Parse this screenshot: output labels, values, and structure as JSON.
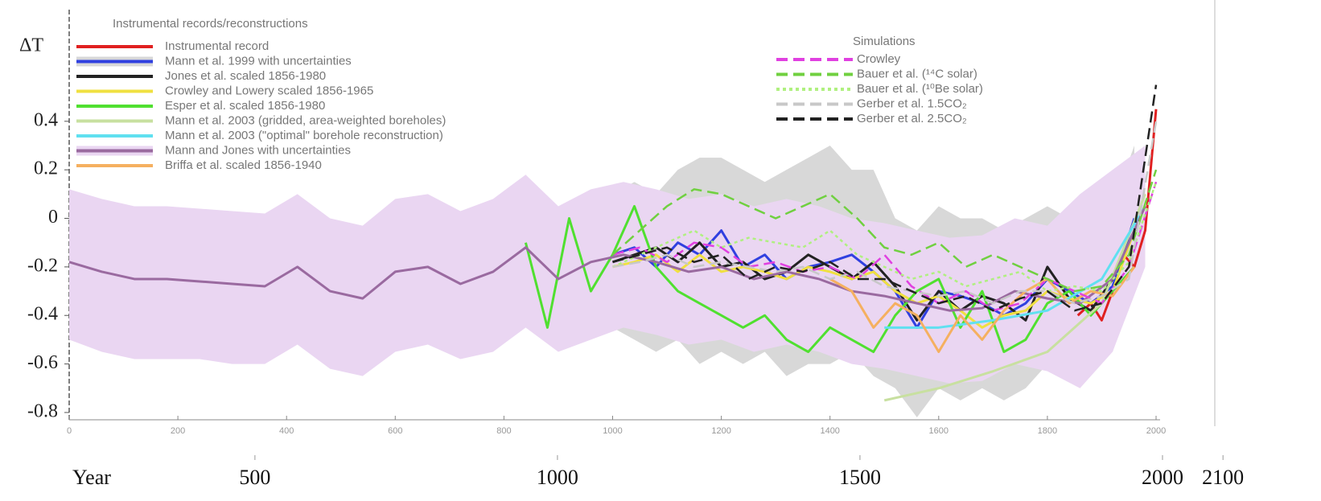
{
  "chart_data": {
    "type": "line",
    "legend_title": "Instrumental records/reconstructions",
    "simulations_title": "Simulations",
    "ylabel": "ΔT",
    "xlabel": "Year",
    "xlim": [
      0,
      2000
    ],
    "xticks": [
      0,
      200,
      400,
      600,
      800,
      1000,
      1200,
      1400,
      1600,
      1800,
      2000
    ],
    "x2lim": [
      193,
      2133
    ],
    "x2ticks": [
      500,
      1000,
      1500,
      2000,
      2100
    ],
    "ylim": [
      -0.83,
      0.86
    ],
    "yticks": [
      0.4,
      0.2,
      0,
      -0.2,
      -0.4,
      -0.6,
      -0.8
    ],
    "series": [
      {
        "name": "Instrumental record",
        "color": "#e02020",
        "x": [
          1856,
          1880,
          1900,
          1920,
          1940,
          1960,
          1980,
          2000
        ],
        "values": [
          -0.4,
          -0.35,
          -0.42,
          -0.3,
          -0.15,
          -0.2,
          -0.05,
          0.45
        ]
      },
      {
        "name": "Mann et al. 1999 with uncertainties",
        "color": "#3040e0",
        "band_color": "#d8d8d8",
        "x": [
          1000,
          1040,
          1080,
          1120,
          1160,
          1200,
          1240,
          1280,
          1320,
          1360,
          1400,
          1440,
          1480,
          1520,
          1560,
          1600,
          1640,
          1680,
          1720,
          1760,
          1800,
          1840,
          1880,
          1920,
          1960
        ],
        "values": [
          -0.15,
          -0.12,
          -0.2,
          -0.1,
          -0.15,
          -0.05,
          -0.2,
          -0.15,
          -0.25,
          -0.2,
          -0.18,
          -0.15,
          -0.22,
          -0.3,
          -0.45,
          -0.3,
          -0.32,
          -0.35,
          -0.4,
          -0.35,
          -0.25,
          -0.3,
          -0.35,
          -0.28,
          0.0
        ],
        "upper": [
          0.1,
          0.15,
          0.1,
          0.2,
          0.25,
          0.25,
          0.2,
          0.15,
          0.2,
          0.25,
          0.3,
          0.2,
          0.2,
          0.0,
          -0.05,
          0.05,
          0.0,
          0.0,
          -0.05,
          0.0,
          0.05,
          0.0,
          0.0,
          0.05,
          0.3
        ],
        "lower": [
          -0.45,
          -0.5,
          -0.55,
          -0.5,
          -0.6,
          -0.55,
          -0.6,
          -0.55,
          -0.65,
          -0.6,
          -0.6,
          -0.55,
          -0.65,
          -0.7,
          -0.82,
          -0.7,
          -0.75,
          -0.7,
          -0.75,
          -0.7,
          -0.6,
          -0.65,
          -0.6,
          -0.55,
          -0.3
        ]
      },
      {
        "name": "Jones et al. scaled 1856-1980",
        "color": "#222222",
        "x": [
          1000,
          1040,
          1080,
          1120,
          1160,
          1200,
          1240,
          1280,
          1320,
          1360,
          1400,
          1440,
          1480,
          1520,
          1560,
          1600,
          1640,
          1680,
          1720,
          1760,
          1800,
          1840,
          1880,
          1920,
          1960
        ],
        "values": [
          -0.18,
          -0.15,
          -0.12,
          -0.18,
          -0.1,
          -0.2,
          -0.18,
          -0.25,
          -0.22,
          -0.15,
          -0.2,
          -0.25,
          -0.18,
          -0.28,
          -0.42,
          -0.3,
          -0.38,
          -0.32,
          -0.35,
          -0.42,
          -0.2,
          -0.33,
          -0.38,
          -0.25,
          -0.05
        ]
      },
      {
        "name": "Crowley and Lowery scaled 1856-1965",
        "color": "#f0e040",
        "x": [
          1000,
          1040,
          1080,
          1120,
          1160,
          1200,
          1240,
          1280,
          1320,
          1360,
          1400,
          1440,
          1480,
          1520,
          1560,
          1600,
          1640,
          1680,
          1720,
          1760,
          1800,
          1840,
          1880,
          1920,
          1960
        ],
        "values": [
          -0.2,
          -0.18,
          -0.15,
          -0.22,
          -0.15,
          -0.22,
          -0.2,
          -0.22,
          -0.25,
          -0.2,
          -0.22,
          -0.25,
          -0.22,
          -0.3,
          -0.35,
          -0.32,
          -0.38,
          -0.45,
          -0.4,
          -0.38,
          -0.3,
          -0.33,
          -0.35,
          -0.3,
          -0.05
        ]
      },
      {
        "name": "Esper et al. scaled 1856-1980",
        "color": "#50e030",
        "x": [
          840,
          880,
          920,
          960,
          1000,
          1040,
          1080,
          1120,
          1160,
          1200,
          1240,
          1280,
          1320,
          1360,
          1400,
          1440,
          1480,
          1520,
          1560,
          1600,
          1640,
          1680,
          1720,
          1760,
          1800,
          1840,
          1880,
          1920,
          1960
        ],
        "values": [
          -0.1,
          -0.45,
          0.0,
          -0.3,
          -0.15,
          0.05,
          -0.2,
          -0.3,
          -0.35,
          -0.4,
          -0.45,
          -0.4,
          -0.5,
          -0.55,
          -0.45,
          -0.5,
          -0.55,
          -0.4,
          -0.3,
          -0.25,
          -0.45,
          -0.3,
          -0.55,
          -0.5,
          -0.35,
          -0.3,
          -0.4,
          -0.3,
          -0.2
        ]
      },
      {
        "name": "Mann et al. 2003 (gridded, area-weighted boreholes)",
        "color": "#c8e0a0",
        "x": [
          1500,
          1600,
          1700,
          1800,
          1900,
          1980
        ],
        "values": [
          -0.75,
          -0.7,
          -0.63,
          -0.55,
          -0.35,
          0.1
        ]
      },
      {
        "name": "Mann et al. 2003 (\"optimal\" borehole reconstruction)",
        "color": "#60e0f0",
        "x": [
          1500,
          1600,
          1700,
          1800,
          1900,
          1980
        ],
        "values": [
          -0.45,
          -0.45,
          -0.42,
          -0.38,
          -0.25,
          0.05
        ]
      },
      {
        "name": "Mann and Jones with uncertainties",
        "color": "#9a6aa0",
        "band_color": "#ead6f2",
        "x": [
          0,
          60,
          120,
          180,
          240,
          300,
          360,
          420,
          480,
          540,
          600,
          660,
          720,
          780,
          840,
          900,
          960,
          1020,
          1080,
          1140,
          1200,
          1260,
          1320,
          1380,
          1440,
          1500,
          1560,
          1620,
          1680,
          1740,
          1800,
          1860,
          1920,
          1980
        ],
        "values": [
          -0.18,
          -0.22,
          -0.25,
          -0.25,
          -0.26,
          -0.27,
          -0.28,
          -0.2,
          -0.3,
          -0.33,
          -0.22,
          -0.2,
          -0.27,
          -0.22,
          -0.12,
          -0.25,
          -0.18,
          -0.15,
          -0.18,
          -0.22,
          -0.2,
          -0.25,
          -0.22,
          -0.25,
          -0.3,
          -0.32,
          -0.35,
          -0.38,
          -0.37,
          -0.3,
          -0.33,
          -0.35,
          -0.25,
          0.05
        ],
        "upper": [
          0.12,
          0.08,
          0.05,
          0.05,
          0.04,
          0.03,
          0.02,
          0.1,
          0.0,
          -0.03,
          0.08,
          0.1,
          0.03,
          0.08,
          0.18,
          0.05,
          0.12,
          0.15,
          0.12,
          0.08,
          0.1,
          0.05,
          0.08,
          0.05,
          0.0,
          -0.02,
          -0.05,
          -0.08,
          -0.07,
          0.0,
          -0.03,
          0.1,
          0.2,
          0.3
        ],
        "lower": [
          -0.5,
          -0.55,
          -0.58,
          -0.58,
          -0.58,
          -0.6,
          -0.6,
          -0.52,
          -0.62,
          -0.65,
          -0.55,
          -0.52,
          -0.58,
          -0.55,
          -0.45,
          -0.55,
          -0.5,
          -0.45,
          -0.48,
          -0.52,
          -0.5,
          -0.55,
          -0.52,
          -0.55,
          -0.6,
          -0.62,
          -0.65,
          -0.68,
          -0.67,
          -0.6,
          -0.63,
          -0.7,
          -0.55,
          -0.2
        ]
      },
      {
        "name": "Briffa et al. scaled 1856-1940",
        "color": "#f5b060",
        "x": [
          1400,
          1440,
          1480,
          1520,
          1560,
          1600,
          1640,
          1680,
          1720,
          1760,
          1800,
          1840,
          1880,
          1920,
          1960
        ],
        "values": [
          -0.25,
          -0.3,
          -0.45,
          -0.35,
          -0.4,
          -0.55,
          -0.4,
          -0.5,
          -0.38,
          -0.3,
          -0.25,
          -0.35,
          -0.3,
          -0.32,
          -0.2
        ]
      }
    ],
    "simulations": [
      {
        "name": "Crowley",
        "color": "#e040e0",
        "dash": "dashed",
        "x": [
          1000,
          1050,
          1100,
          1150,
          1200,
          1250,
          1300,
          1350,
          1400,
          1450,
          1500,
          1550,
          1600,
          1650,
          1700,
          1750,
          1800,
          1850,
          1900,
          1950,
          2000
        ],
        "values": [
          -0.15,
          -0.12,
          -0.18,
          -0.1,
          -0.12,
          -0.2,
          -0.18,
          -0.22,
          -0.2,
          -0.25,
          -0.15,
          -0.28,
          -0.35,
          -0.3,
          -0.38,
          -0.35,
          -0.25,
          -0.3,
          -0.35,
          -0.2,
          0.15
        ]
      },
      {
        "name": "Bauer et al. (¹⁴C solar)",
        "color": "#70d040",
        "dash": "dashed",
        "x": [
          1000,
          1050,
          1100,
          1150,
          1200,
          1250,
          1300,
          1350,
          1400,
          1450,
          1500,
          1550,
          1600,
          1650,
          1700,
          1750,
          1800,
          1850,
          1900,
          1950,
          2000
        ],
        "values": [
          -0.15,
          -0.05,
          0.05,
          0.12,
          0.1,
          0.05,
          0.0,
          0.05,
          0.1,
          0.0,
          -0.12,
          -0.15,
          -0.1,
          -0.2,
          -0.15,
          -0.2,
          -0.25,
          -0.3,
          -0.28,
          -0.15,
          0.2
        ]
      },
      {
        "name": "Bauer et al. (¹⁰Be solar)",
        "color": "#b0f080",
        "dash": "dotted",
        "x": [
          1000,
          1050,
          1100,
          1150,
          1200,
          1250,
          1300,
          1350,
          1400,
          1450,
          1500,
          1550,
          1600,
          1650,
          1700,
          1750,
          1800,
          1850,
          1900,
          1950,
          2000
        ],
        "values": [
          -0.2,
          -0.15,
          -0.1,
          -0.05,
          -0.12,
          -0.08,
          -0.1,
          -0.12,
          -0.05,
          -0.15,
          -0.2,
          -0.25,
          -0.22,
          -0.28,
          -0.25,
          -0.22,
          -0.3,
          -0.28,
          -0.3,
          -0.18,
          0.15
        ]
      },
      {
        "name": "Gerber et al. 1.5CO₂",
        "color": "#c8c8c8",
        "dash": "dashed",
        "x": [
          1000,
          1050,
          1100,
          1150,
          1200,
          1250,
          1300,
          1350,
          1400,
          1450,
          1500,
          1550,
          1600,
          1650,
          1700,
          1750,
          1800,
          1850,
          1900,
          1950,
          2000
        ],
        "values": [
          -0.2,
          -0.18,
          -0.15,
          -0.2,
          -0.18,
          -0.2,
          -0.22,
          -0.2,
          -0.25,
          -0.22,
          -0.28,
          -0.3,
          -0.32,
          -0.3,
          -0.35,
          -0.3,
          -0.3,
          -0.35,
          -0.32,
          -0.25,
          0.4
        ]
      },
      {
        "name": "Gerber et al. 2.5CO₂",
        "color": "#222222",
        "dash": "dashed",
        "x": [
          1000,
          1050,
          1100,
          1150,
          1200,
          1250,
          1300,
          1350,
          1400,
          1450,
          1500,
          1550,
          1600,
          1650,
          1700,
          1750,
          1800,
          1850,
          1900,
          1950,
          2000
        ],
        "values": [
          -0.18,
          -0.15,
          -0.12,
          -0.18,
          -0.15,
          -0.25,
          -0.2,
          -0.22,
          -0.18,
          -0.25,
          -0.25,
          -0.3,
          -0.35,
          -0.32,
          -0.38,
          -0.33,
          -0.3,
          -0.38,
          -0.35,
          -0.2,
          0.55
        ]
      }
    ]
  }
}
